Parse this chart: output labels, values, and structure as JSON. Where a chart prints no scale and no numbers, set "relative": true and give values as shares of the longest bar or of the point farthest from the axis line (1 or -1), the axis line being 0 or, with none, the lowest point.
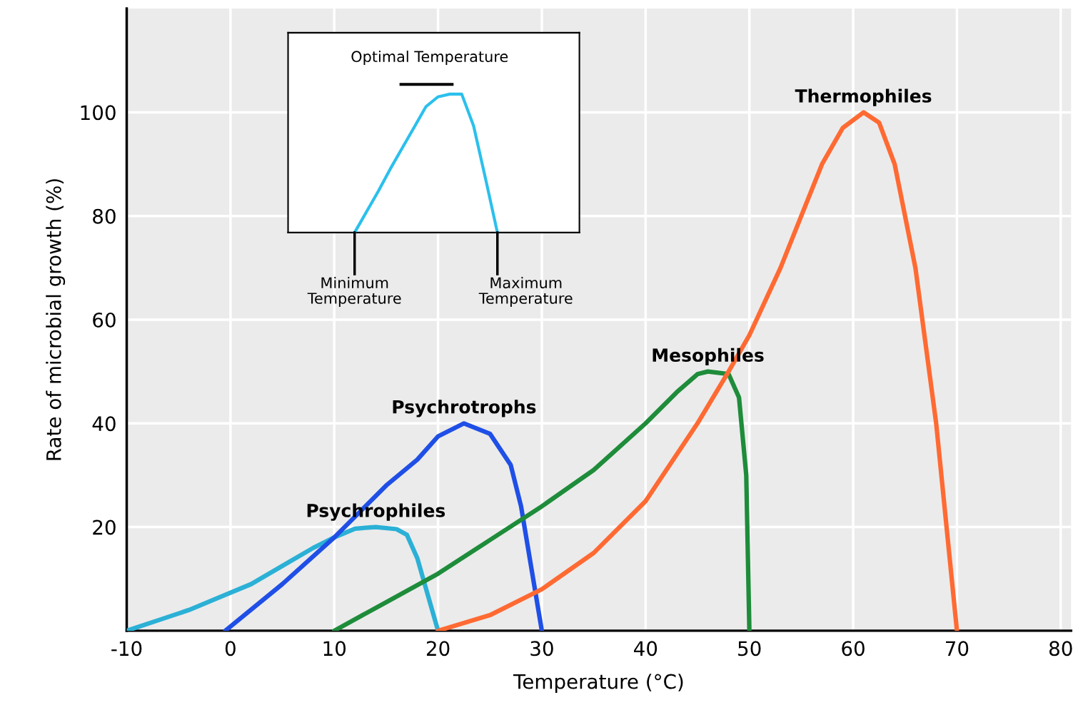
{
  "chart_data": [
    {
      "type": "line",
      "xlabel": "Temperature (°C)",
      "ylabel": "Rate of microbial growth (%)",
      "xlim": [
        -10,
        81
      ],
      "ylim": [
        0,
        120
      ],
      "xticks": [
        -10,
        0,
        10,
        20,
        30,
        40,
        50,
        60,
        70,
        80
      ],
      "yticks": [
        20,
        40,
        60,
        80,
        100
      ],
      "grid": true,
      "marker": "none",
      "line_style": "solid",
      "series": [
        {
          "name": "Psychrophiles",
          "color": "#2bb0d6",
          "x": [
            -10,
            -7,
            -4,
            -1,
            2,
            5,
            8,
            10,
            12,
            14,
            16,
            17,
            18,
            19,
            20
          ],
          "values": [
            0,
            2,
            4,
            6.5,
            9,
            12.5,
            16,
            18,
            19.7,
            20,
            19.6,
            18.5,
            14,
            7,
            0
          ]
        },
        {
          "name": "Psychrotrophs",
          "color": "#1f4fe6",
          "x": [
            -0.5,
            5,
            10,
            15,
            18,
            20,
            22.5,
            25,
            27,
            28,
            29,
            30
          ],
          "values": [
            0,
            9,
            18,
            28,
            33,
            37.5,
            40,
            38,
            32,
            24,
            12,
            0
          ]
        },
        {
          "name": "Mesophiles",
          "color": "#1e8c3a",
          "x": [
            10,
            15,
            20,
            25,
            30,
            35,
            40,
            43,
            45,
            46,
            48,
            49,
            49.7,
            50
          ],
          "values": [
            0,
            5.5,
            11,
            17.5,
            24,
            31,
            40,
            46,
            49.5,
            50,
            49.5,
            45,
            30,
            0
          ]
        },
        {
          "name": "Thermophiles",
          "color": "#ff6a33",
          "x": [
            20,
            25,
            30,
            35,
            40,
            45,
            48,
            50,
            53,
            55,
            57,
            59,
            61,
            62.5,
            64,
            66,
            68,
            70
          ],
          "values": [
            0,
            3,
            8,
            15,
            25,
            40,
            50,
            57,
            70,
            80,
            90,
            97,
            100,
            98,
            90,
            70,
            40,
            0
          ]
        }
      ]
    },
    {
      "type": "line",
      "relative": true,
      "tick_labels": false,
      "marker": "none",
      "line_style": "solid",
      "categories": [
        null,
        null,
        null,
        null,
        null,
        null,
        null,
        null,
        null,
        null,
        null,
        null,
        null
      ],
      "series": [
        {
          "color": "#2bc0ec",
          "values": [
            0,
            0.15,
            0.3,
            0.46,
            0.61,
            0.76,
            0.91,
            0.98,
            1,
            1,
            0.77,
            0.39,
            0
          ]
        }
      ],
      "annotations": [
        "Optimal Temperature",
        "Minimum\nTemperature",
        "Maximum\nTemperature"
      ]
    }
  ]
}
